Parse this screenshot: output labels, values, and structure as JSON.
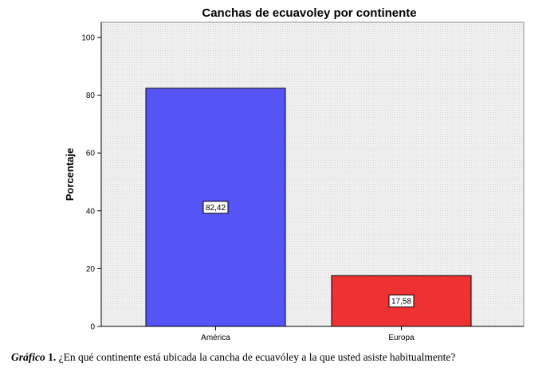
{
  "chart_data": {
    "type": "bar",
    "title": "Canchas de ecuavoley por continente",
    "xlabel": "",
    "ylabel": "Porcentaje",
    "categories": [
      "América",
      "Europa"
    ],
    "values": [
      82.42,
      17.58
    ],
    "data_labels": [
      "82,42",
      "17,58"
    ],
    "ylim": [
      0,
      100
    ],
    "yticks": [
      0,
      20,
      40,
      60,
      80,
      100
    ],
    "grid": false,
    "legend": "none",
    "colors": {
      "bars": [
        "#5454f7",
        "#ee3234"
      ],
      "plot_background": "#f0f0f0",
      "bar_outline": "#000000"
    }
  },
  "caption": {
    "label_italic": "Gráfico",
    "label_number": " 1.",
    "text": " ¿En qué continente está ubicada la cancha de ecuavóley a la que usted asiste habitualmente?"
  }
}
